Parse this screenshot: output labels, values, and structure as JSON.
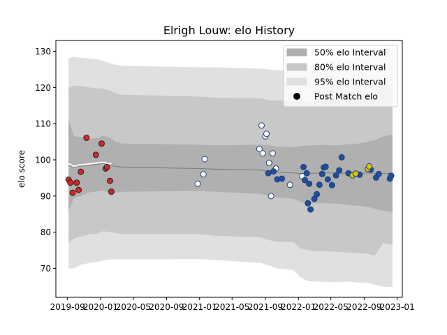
{
  "chart_data": {
    "type": "scatter",
    "title": "Elrigh Louw: elo History",
    "xlabel": "",
    "ylabel": "elo score",
    "xlim": [
      "2019-07-20",
      "2023-01-20"
    ],
    "ylim": [
      62,
      133
    ],
    "x_ticks": [
      "2019-09",
      "2020-01",
      "2020-05",
      "2020-09",
      "2021-01",
      "2021-05",
      "2021-09",
      "2022-01",
      "2022-05",
      "2022-09",
      "2023-01"
    ],
    "y_ticks": [
      70,
      80,
      90,
      100,
      110,
      120,
      130
    ],
    "grid": false,
    "legend_position": "top-right",
    "legend": [
      {
        "label": "50% elo Interval",
        "color": "#b0b0b0"
      },
      {
        "label": "80% elo Interval",
        "color": "#c8c8c8"
      },
      {
        "label": "95% elo Interval",
        "color": "#e0e0e0"
      },
      {
        "label": "Post Match elo",
        "color": "#000000"
      }
    ],
    "band_x": [
      "2019-09-05",
      "2019-09-25",
      "2019-10-20",
      "2019-11-20",
      "2019-12-20",
      "2020-01-10",
      "2020-02-05",
      "2020-02-25",
      "2020-03-20",
      "2020-12-25",
      "2021-03-01",
      "2021-08-15",
      "2021-09-15",
      "2021-10-15",
      "2021-12-15",
      "2022-01-10",
      "2022-02-05",
      "2022-03-01",
      "2022-04-01",
      "2022-05-01",
      "2022-06-01",
      "2022-07-01",
      "2022-08-10",
      "2022-09-15",
      "2022-10-10",
      "2022-11-10",
      "2022-12-15"
    ],
    "mean_elo": [
      98.5,
      98,
      98.3,
      98.5,
      98.8,
      99,
      98.6,
      98.2,
      98,
      97.6,
      97.4,
      97.2,
      96.8,
      96.6,
      96.4,
      96.2,
      96.2,
      96.3,
      96.4,
      96.4,
      96.3,
      96.3,
      96.2,
      96.4,
      96.3,
      96.2,
      96.2
    ],
    "band_50": {
      "upper": [
        111,
        106.5,
        106.3,
        105.8,
        106,
        106.6,
        106.1,
        105.1,
        104.5,
        104.2,
        104,
        104.2,
        104,
        103.7,
        103.5,
        103.8,
        104,
        104,
        104.2,
        104,
        104,
        104.3,
        104.5,
        105,
        105.5,
        106.5,
        107
      ],
      "lower": [
        86,
        89.5,
        90,
        91,
        91.3,
        91.5,
        91,
        91,
        91.2,
        91.4,
        91.2,
        90.6,
        90,
        89.6,
        89.2,
        88.4,
        88,
        88,
        88,
        88,
        87.8,
        87.5,
        87.3,
        87,
        86.5,
        86,
        85.5
      ]
    },
    "band_80": {
      "upper": [
        120,
        120.5,
        120.4,
        120,
        119.8,
        119.7,
        119.2,
        118.5,
        118,
        117.5,
        117.2,
        117,
        116.5,
        116.4,
        116.2,
        116.3,
        116,
        116,
        116.4,
        116.6,
        116.8,
        117.4,
        117.9,
        118.5,
        119.4,
        120.4,
        121.2
      ],
      "lower": [
        77,
        78.3,
        78.8,
        79.4,
        79.6,
        80.3,
        80,
        79.8,
        79.5,
        79.5,
        79,
        78.6,
        77.8,
        77.4,
        77.2,
        75.5,
        75,
        74.8,
        74.7,
        74.7,
        74.5,
        74.4,
        74.2,
        74,
        73.5,
        77,
        76.5
      ]
    },
    "band_95": {
      "upper": [
        128,
        128.5,
        128.2,
        128,
        127.8,
        127.4,
        126.7,
        126.3,
        126,
        125.6,
        125.6,
        125.2,
        125,
        124.8,
        124.5,
        125.7,
        126,
        126.5,
        127,
        127.2,
        127.4,
        127.8,
        128.5,
        129,
        130,
        131,
        131.5
      ],
      "lower": [
        70,
        70,
        71,
        71.5,
        71.8,
        72.2,
        72.5,
        72.5,
        72.5,
        72.6,
        72.3,
        71.5,
        70.8,
        70,
        69.5,
        67.5,
        66.5,
        66.4,
        66.3,
        66.2,
        66.2,
        66.4,
        66.1,
        66,
        65.5,
        65,
        64.8
      ]
    },
    "series": [
      {
        "color": "#d62728",
        "x": [
          "2019-09-05",
          "2019-09-12",
          "2019-09-20",
          "2019-10-05",
          "2019-10-12",
          "2019-10-20",
          "2019-11-10",
          "2019-12-15",
          "2020-01-05",
          "2020-01-20",
          "2020-01-25",
          "2020-02-05",
          "2020-02-10"
        ],
        "y": [
          94.5,
          93.7,
          90.9,
          93.7,
          91.7,
          96.7,
          106.1,
          101.4,
          104.5,
          97.6,
          98,
          94.2,
          91.2
        ]
      },
      {
        "color": "#ffffff",
        "x": [
          "2020-12-25",
          "2021-01-15",
          "2021-01-20",
          "2021-08-10",
          "2021-08-18",
          "2021-08-22",
          "2021-09-01",
          "2021-09-05",
          "2021-09-15",
          "2021-09-22",
          "2021-09-28",
          "2021-10-10",
          "2021-12-01",
          "2022-01-15"
        ],
        "y": [
          93.4,
          96,
          100.2,
          103,
          109.5,
          101.8,
          106.5,
          107.2,
          99.2,
          90,
          101.8,
          97.6,
          93.1,
          95.5
        ]
      },
      {
        "color": "#1f4e9c",
        "x": [
          "2021-09-12",
          "2021-10-01",
          "2021-10-15",
          "2021-11-01",
          "2022-01-20",
          "2022-01-25",
          "2022-02-01",
          "2022-02-05",
          "2022-02-10",
          "2022-02-15",
          "2022-03-01",
          "2022-03-10",
          "2022-03-20",
          "2022-03-30",
          "2022-04-05",
          "2022-04-12",
          "2022-04-20",
          "2022-05-05",
          "2022-05-20",
          "2022-06-01",
          "2022-06-10",
          "2022-07-05",
          "2022-08-15",
          "2022-09-25",
          "2022-10-15",
          "2022-10-25",
          "2022-12-05",
          "2022-12-10"
        ],
        "y": [
          96.3,
          96.8,
          94.6,
          94.8,
          98,
          94.4,
          96.3,
          88,
          93.4,
          86.3,
          89.2,
          90.5,
          93.1,
          96.1,
          97.9,
          98.1,
          94.6,
          93,
          95.7,
          97.1,
          100.7,
          96.3,
          95.9,
          97.3,
          95.1,
          96.1,
          94.8,
          95.6
        ]
      },
      {
        "color": "#d9c800",
        "x": [
          "2022-07-20",
          "2022-08-01",
          "2022-09-15",
          "2022-09-20"
        ],
        "y": [
          95.7,
          96.2,
          97.5,
          98.2
        ]
      }
    ]
  }
}
